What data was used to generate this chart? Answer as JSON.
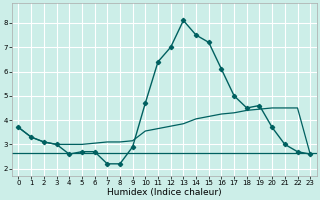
{
  "xlabel": "Humidex (Indice chaleur)",
  "bg_color": "#cceee8",
  "line_color": "#006060",
  "grid_color": "#ffffff",
  "x_main": [
    0,
    1,
    2,
    3,
    4,
    5,
    6,
    7,
    8,
    9,
    10,
    11,
    12,
    13,
    14,
    15,
    16,
    17,
    18,
    19,
    20,
    21,
    22,
    23
  ],
  "y_main": [
    3.7,
    3.3,
    3.1,
    3.0,
    2.6,
    2.7,
    2.7,
    2.2,
    2.2,
    2.9,
    4.7,
    6.4,
    7.0,
    8.1,
    7.5,
    7.2,
    6.1,
    5.0,
    4.5,
    4.6,
    3.7,
    3.0,
    2.7,
    2.6
  ],
  "y_line2": [
    3.7,
    3.3,
    3.1,
    3.0,
    3.0,
    3.0,
    3.05,
    3.1,
    3.1,
    3.15,
    3.55,
    3.65,
    3.75,
    3.85,
    4.05,
    4.15,
    4.25,
    4.3,
    4.4,
    4.45,
    4.5,
    4.5,
    4.5,
    2.6
  ],
  "y_hline": 2.65,
  "xlim": [
    -0.5,
    23.5
  ],
  "ylim": [
    1.7,
    8.8
  ],
  "yticks": [
    2,
    3,
    4,
    5,
    6,
    7,
    8
  ],
  "xtick_labels": [
    "0",
    "1",
    "2",
    "3",
    "4",
    "5",
    "6",
    "7",
    "8",
    "9",
    "10",
    "11",
    "12",
    "13",
    "14",
    "15",
    "16",
    "17",
    "18",
    "19",
    "20",
    "21",
    "22",
    "23"
  ]
}
